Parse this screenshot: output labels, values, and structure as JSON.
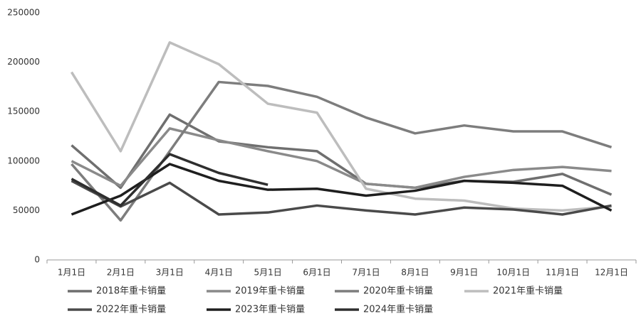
{
  "chart_data": {
    "type": "line",
    "categories": [
      "1月1日",
      "2月1日",
      "3月1日",
      "4月1日",
      "5月1日",
      "6月1日",
      "7月1日",
      "8月1日",
      "9月1日",
      "10月1日",
      "11月1日",
      "12月1日"
    ],
    "ylim": [
      0,
      250000
    ],
    "yticks": [
      0,
      50000,
      100000,
      150000,
      200000,
      250000
    ],
    "grid": false,
    "legend": "bottom",
    "series": [
      {
        "name": "2018年重卡销量",
        "color": "#6f6f6f",
        "values": [
          116000,
          73000,
          147000,
          120000,
          114000,
          110000,
          77000,
          73000,
          80000,
          79000,
          87000,
          66000
        ]
      },
      {
        "name": "2019年重卡销量",
        "color": "#8a8a8a",
        "values": [
          100000,
          75000,
          133000,
          121000,
          110000,
          100000,
          77000,
          73000,
          84000,
          91000,
          94000,
          90000
        ]
      },
      {
        "name": "2020年重卡销量",
        "color": "#7d7d7d",
        "values": [
          97000,
          40000,
          110000,
          180000,
          176000,
          165000,
          144000,
          128000,
          136000,
          130000,
          130000,
          114000
        ]
      },
      {
        "name": "2021年重卡销量",
        "color": "#bdbdbd",
        "values": [
          190000,
          110000,
          220000,
          198000,
          158000,
          149000,
          72000,
          62000,
          60000,
          52000,
          50000,
          54000
        ]
      },
      {
        "name": "2022年重卡销量",
        "color": "#4a4a4a",
        "values": [
          80000,
          54000,
          78000,
          46000,
          48000,
          55000,
          50000,
          46000,
          53000,
          51000,
          46000,
          55000
        ]
      },
      {
        "name": "2023年重卡销量",
        "color": "#1e1e1e",
        "values": [
          46000,
          65000,
          97000,
          80000,
          71000,
          72000,
          65000,
          70000,
          80000,
          78000,
          75000,
          50000
        ]
      },
      {
        "name": "2024年重卡销量",
        "color": "#2e2e2e",
        "values": [
          82000,
          55000,
          107000,
          88000,
          76000,
          null,
          null,
          null,
          null,
          null,
          null,
          null
        ]
      }
    ]
  }
}
